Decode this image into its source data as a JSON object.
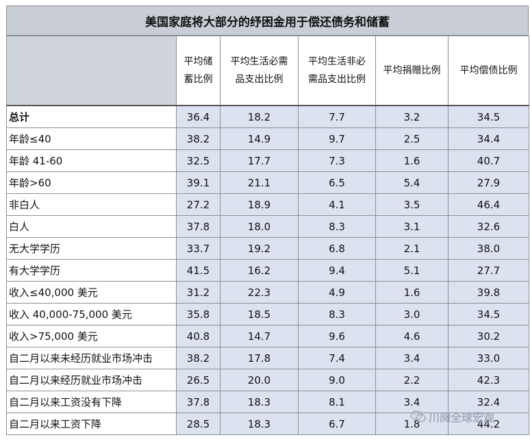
{
  "chart_data": {
    "type": "table",
    "title": "美国家庭将大部分的纾困金用于偿还债务和储蓄",
    "columns": [
      "",
      "平均储蓄比例",
      "平均生活必需品支出比例",
      "平均生活非必需品支出比例",
      "平均捐赠比例",
      "平均偿债比例"
    ],
    "rows": [
      {
        "label": "总计",
        "values": [
          "36.4",
          "18.2",
          "7.7",
          "3.2",
          "34.5"
        ]
      },
      {
        "label": "年龄≤40",
        "values": [
          "38.2",
          "14.9",
          "9.7",
          "2.5",
          "34.4"
        ]
      },
      {
        "label": "年龄 41-60",
        "values": [
          "32.5",
          "17.7",
          "7.3",
          "1.6",
          "40.7"
        ]
      },
      {
        "label": "年龄>60",
        "values": [
          "39.1",
          "21.1",
          "6.5",
          "5.4",
          "27.9"
        ]
      },
      {
        "label": "非白人",
        "values": [
          "27.2",
          "18.9",
          "4.1",
          "3.5",
          "46.4"
        ]
      },
      {
        "label": "白人",
        "values": [
          "37.8",
          "18.0",
          "8.3",
          "3.1",
          "32.6"
        ]
      },
      {
        "label": "无大学学历",
        "values": [
          "33.7",
          "19.2",
          "6.8",
          "2.1",
          "38.0"
        ]
      },
      {
        "label": "有大学学历",
        "values": [
          "41.5",
          "16.2",
          "9.4",
          "5.1",
          "27.7"
        ]
      },
      {
        "label": "收入≤40,000 美元",
        "values": [
          "31.2",
          "22.3",
          "4.9",
          "1.6",
          "39.8"
        ]
      },
      {
        "label": "收入 40,000-75,000 美元",
        "values": [
          "35.8",
          "18.5",
          "8.3",
          "3.0",
          "34.5"
        ]
      },
      {
        "label": "收入>75,000 美元",
        "values": [
          "40.8",
          "14.7",
          "9.6",
          "4.6",
          "30.2"
        ]
      },
      {
        "label": "自二月以来未经历就业市场冲击",
        "values": [
          "38.2",
          "17.8",
          "7.4",
          "3.4",
          "33.0"
        ]
      },
      {
        "label": "自二月以来经历就业市场冲击",
        "values": [
          "26.5",
          "20.0",
          "9.0",
          "2.2",
          "42.3"
        ]
      },
      {
        "label": "自二月以来工资没有下降",
        "values": [
          "37.8",
          "18.3",
          "8.1",
          "3.4",
          "32.4"
        ]
      },
      {
        "label": "自二月以来工资下降",
        "values": [
          "28.5",
          "18.3",
          "6.7",
          "1.8",
          "44.2"
        ]
      }
    ]
  },
  "header_lines": [
    [],
    [
      "平均储",
      "蓄比例"
    ],
    [
      "平均生活必需",
      "品支出比例"
    ],
    [
      "平均生活非必",
      "需品支出比例"
    ],
    [
      "平均捐赠比例"
    ],
    [
      "平均偿债比例"
    ]
  ],
  "watermark": {
    "text": "川阅全球宏观",
    "icon": "wechat-icon"
  },
  "colors": {
    "title_bg": "#c9ced6",
    "cell_bg": "#dde2f1",
    "grid": "#8a8f96"
  }
}
